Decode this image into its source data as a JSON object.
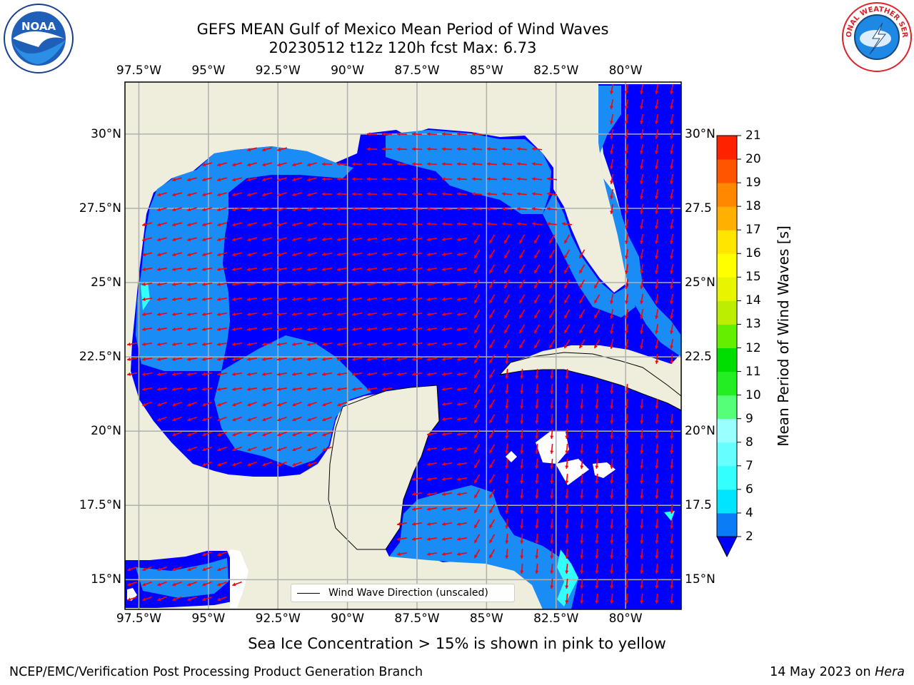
{
  "header": {
    "title_line1": "GEFS MEAN Gulf of Mexico Mean Period of Wind Waves",
    "title_line2": "20230512 t12z 120h fcst   Max: 6.73"
  },
  "axes": {
    "lon_labels": [
      "97.5°W",
      "95°W",
      "92.5°W",
      "90°W",
      "87.5°W",
      "85°W",
      "82.5°W",
      "80°W"
    ],
    "lat_labels_left": [
      "30°N",
      "27.5°N",
      "25°N",
      "22.5°N",
      "20°N",
      "17.5°N",
      "15°N"
    ],
    "lat_labels_right": [
      "30°N",
      "27.5",
      "25°N",
      "22.5",
      "20°N",
      "17.5",
      "15°N"
    ],
    "lon_values": [
      -97.5,
      -95,
      -92.5,
      -90,
      -87.5,
      -85,
      -82.5,
      -80
    ],
    "lat_values": [
      30,
      27.5,
      25,
      22.5,
      20,
      17.5,
      15
    ],
    "lon_range": [
      -98,
      -78
    ],
    "lat_range": [
      14,
      31.75
    ]
  },
  "colorbar": {
    "title": "Mean Period of Wind Waves [s]",
    "levels": [
      "2",
      "4",
      "6",
      "7",
      "8",
      "9",
      "10",
      "11",
      "12",
      "13",
      "14",
      "15",
      "16",
      "17",
      "18",
      "19",
      "20",
      "21"
    ],
    "colors": [
      "#0a7cf5",
      "#00e5ff",
      "#33ffff",
      "#66ffff",
      "#99ffff",
      "#55ff77",
      "#22ee22",
      "#00dd00",
      "#66ee00",
      "#bbee00",
      "#e8f500",
      "#ffff00",
      "#ffe600",
      "#ffb000",
      "#ff8800",
      "#ff5500",
      "#ff2200"
    ],
    "extend_color": "#0000ff"
  },
  "legend": {
    "label": "Wind Wave Direction (unscaled)"
  },
  "notes": {
    "sea_ice": "Sea Ice Concentration > 15% is shown in pink to yellow"
  },
  "footer": {
    "left": "NCEP/EMC/Verification Post Processing Product Generation Branch",
    "right_date": "14 May 2023 on ",
    "right_host": "Hera"
  },
  "logos": {
    "left": "NOAA",
    "right": "NATIONAL WEATHER SERVICE"
  },
  "colors": {
    "land": "#efeedd",
    "sea_deep": "#0000ff",
    "sea_mid": "#1a8cf5",
    "arrow": "#ff0000",
    "grid": "#b0b0b0"
  }
}
